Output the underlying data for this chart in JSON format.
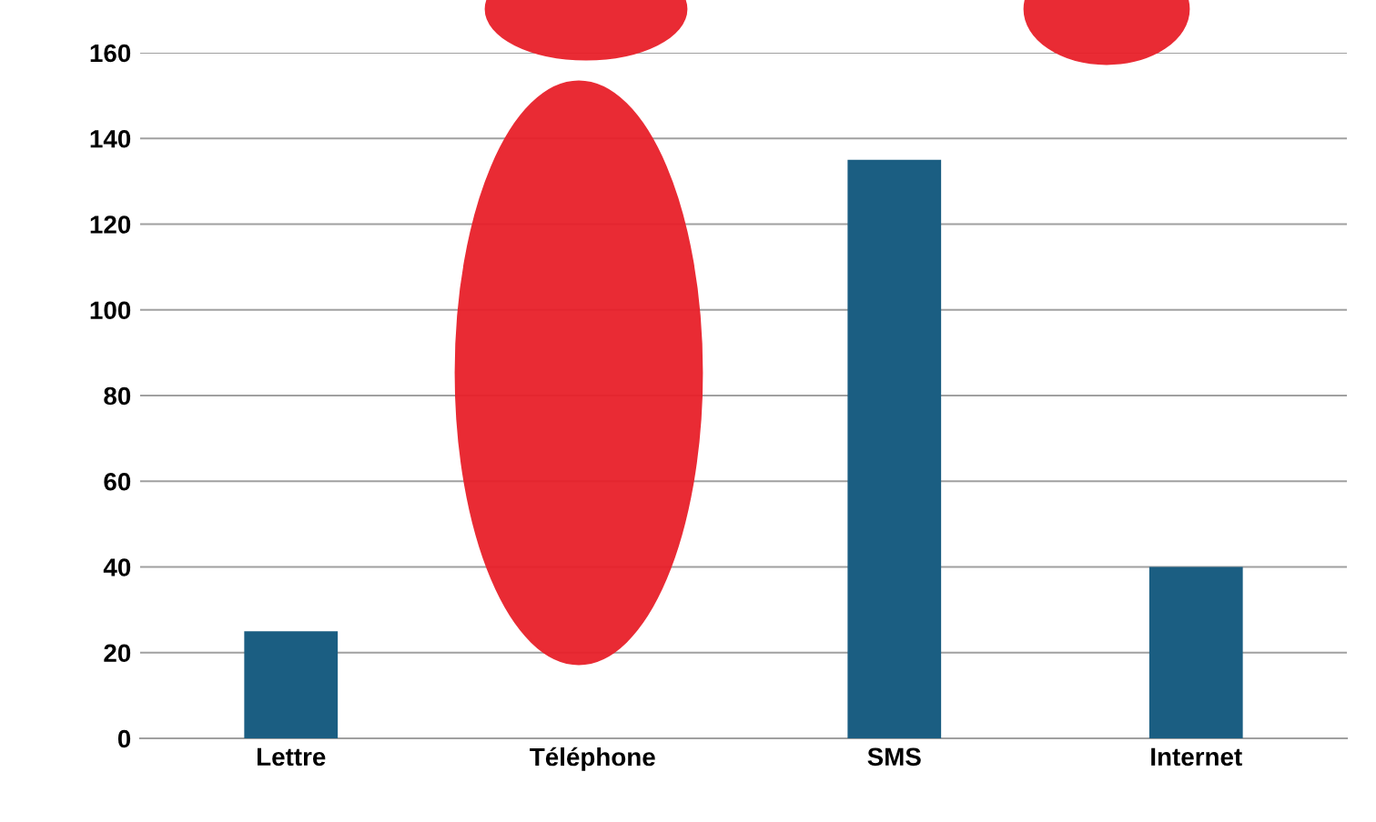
{
  "chart_data": {
    "type": "bar",
    "categories": [
      "Lettre",
      "Téléphone",
      "SMS",
      "Internet"
    ],
    "values": [
      25,
      null,
      135,
      40
    ],
    "color": "#1b5e82",
    "ylim": [
      0,
      160
    ],
    "yticks": [
      0,
      20,
      40,
      60,
      80,
      100,
      120,
      140,
      160
    ],
    "grid": "y"
  }
}
